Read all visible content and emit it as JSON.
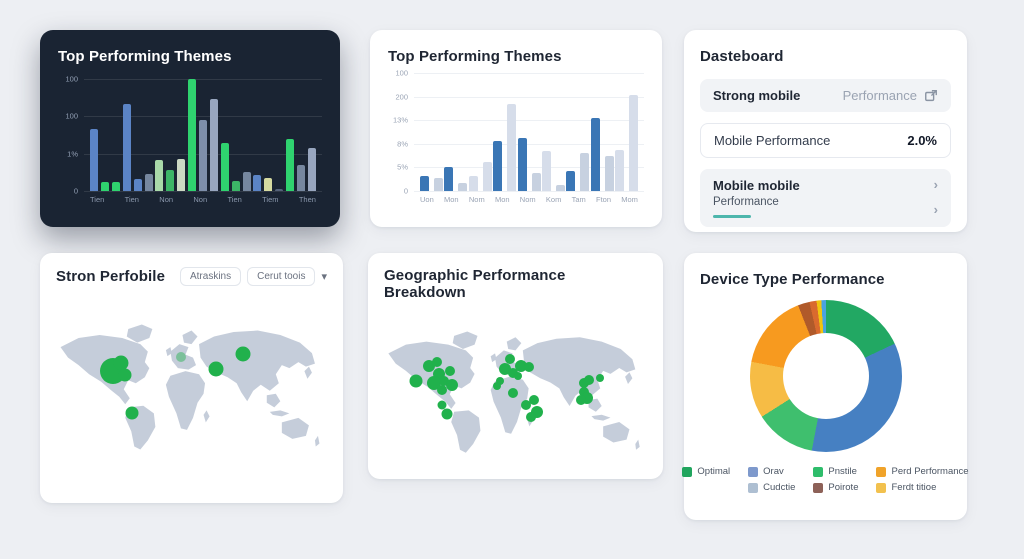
{
  "accent_colors": {
    "green_marker": "#21b14c",
    "teal_underline": "#4db6ac",
    "dark_card_bg": "#1a2433"
  },
  "cards": {
    "dark_chart": {
      "title": "Top Performing Themes"
    },
    "light_chart": {
      "title": "Top Performing Themes"
    },
    "dashboard": {
      "title": "Dasteboard",
      "row1": {
        "label": "Strong mobile",
        "value": "Performance",
        "icon": "external-link-icon"
      },
      "row2": {
        "label": "Mobile Performance",
        "value": "2.0%"
      },
      "row3": {
        "label": "Mobile mobile",
        "sublabel": "Performance",
        "icon": "chevron-right-icon"
      }
    },
    "map_small": {
      "title": "Stron Perfobile",
      "button1": "Atraskins",
      "button2": "Cerut toois"
    },
    "map_large": {
      "title": "Geographic Performance Breakdown"
    },
    "donut": {
      "title": "Device Type Performance"
    }
  },
  "chart_data": [
    {
      "id": "dark-theme-bars",
      "type": "bar",
      "title": "Top Performing Themes",
      "theme": "dark",
      "ylabel": "",
      "xlabel": "",
      "yticks": [
        "100",
        "100",
        "1%",
        "0"
      ],
      "grid": true,
      "categories": [
        "Tien",
        "Tien",
        "Non",
        "Non",
        "Tien",
        "Tiem",
        "Then"
      ],
      "groups": [
        {
          "bars": [
            {
              "v": 55,
              "c": "#5b84c6"
            },
            {
              "v": 8,
              "c": "#2fd36f"
            },
            {
              "v": 8,
              "c": "#2fd36f"
            }
          ]
        },
        {
          "bars": [
            {
              "v": 78,
              "c": "#5b84c6"
            },
            {
              "v": 11,
              "c": "#5b84c6"
            },
            {
              "v": 15,
              "c": "#76879f"
            }
          ]
        },
        {
          "bars": [
            {
              "v": 28,
              "c": "#a9d9a9"
            },
            {
              "v": 19,
              "c": "#3cb567"
            },
            {
              "v": 29,
              "c": "#ccd9c4"
            }
          ]
        },
        {
          "bars": [
            {
              "v": 100,
              "c": "#2fd36f"
            },
            {
              "v": 63,
              "c": "#7e8fab"
            },
            {
              "v": 82,
              "c": "#98a6bf"
            }
          ]
        },
        {
          "bars": [
            {
              "v": 43,
              "c": "#2fd36f"
            },
            {
              "v": 9,
              "c": "#3cb567"
            },
            {
              "v": 17,
              "c": "#76879f"
            }
          ]
        },
        {
          "bars": [
            {
              "v": 14,
              "c": "#5b84c6"
            },
            {
              "v": 12,
              "c": "#d6daa0"
            },
            {
              "v": 2,
              "c": "#55627a"
            }
          ]
        },
        {
          "bars": [
            {
              "v": 46,
              "c": "#2fd36f"
            },
            {
              "v": 23,
              "c": "#76879f"
            },
            {
              "v": 38,
              "c": "#98a6bf"
            }
          ]
        }
      ]
    },
    {
      "id": "light-theme-bars",
      "type": "bar",
      "title": "Top Performing Themes",
      "theme": "light",
      "ylabel": "",
      "xlabel": "",
      "yticks": [
        "100",
        "200",
        "13%",
        "8%",
        "5%",
        "0"
      ],
      "grid": true,
      "categories": [
        "Uon",
        "Mon",
        "Nom",
        "Mon",
        "Nom",
        "Kom",
        "Tam",
        "Fton",
        "Mom"
      ],
      "groups": [
        {
          "bars": [
            {
              "v": 13,
              "c": "#3a76b5"
            },
            {
              "v": 11,
              "c": "#c7d1e0"
            }
          ]
        },
        {
          "bars": [
            {
              "v": 20,
              "c": "#3a76b5"
            },
            {
              "v": 7,
              "c": "#c7d1e0"
            }
          ]
        },
        {
          "bars": [
            {
              "v": 13,
              "c": "#d6ddea"
            },
            {
              "v": 25,
              "c": "#d6ddea"
            }
          ]
        },
        {
          "bars": [
            {
              "v": 42,
              "c": "#3a76b5"
            },
            {
              "v": 74,
              "c": "#d6ddea"
            }
          ]
        },
        {
          "bars": [
            {
              "v": 45,
              "c": "#3a76b5"
            },
            {
              "v": 15,
              "c": "#c7d1e0"
            }
          ]
        },
        {
          "bars": [
            {
              "v": 34,
              "c": "#d6ddea"
            },
            {
              "v": 5,
              "c": "#c7d1e0"
            }
          ]
        },
        {
          "bars": [
            {
              "v": 17,
              "c": "#3a76b5"
            },
            {
              "v": 32,
              "c": "#c7d1e0"
            }
          ]
        },
        {
          "bars": [
            {
              "v": 62,
              "c": "#3a76b5"
            },
            {
              "v": 30,
              "c": "#c7d1e0"
            }
          ]
        },
        {
          "bars": [
            {
              "v": 35,
              "c": "#d6ddea"
            },
            {
              "v": 81,
              "c": "#d6ddea"
            }
          ]
        }
      ]
    },
    {
      "id": "device-type-donut",
      "type": "pie",
      "title": "Device Type Performance",
      "slices": [
        {
          "label": "Optimal",
          "value": 18,
          "color": "#22a863"
        },
        {
          "label": "Orav",
          "value": 35,
          "color": "#4680c2"
        },
        {
          "label": "Pnstile",
          "value": 13,
          "color": "#3fbf6e"
        },
        {
          "label": "Ferdt titioe",
          "value": 12,
          "color": "#f6bc45"
        },
        {
          "label": "Perd Performance",
          "value": 16,
          "color": "#f79a1f"
        },
        {
          "label": "Poirote",
          "value": 2.5,
          "color": "#b05a2a"
        },
        {
          "label": "sliver-red",
          "value": 1.5,
          "color": "#d96a2e"
        },
        {
          "label": "sliver-gold",
          "value": 1,
          "color": "#f1c40f"
        },
        {
          "label": "sliver-blue",
          "value": 1,
          "color": "#4aa3df"
        }
      ],
      "legend_position": "bottom"
    }
  ],
  "legend_columns": [
    {
      "items": [
        {
          "label": "Optimal",
          "color": "#21a55e"
        }
      ]
    },
    {
      "items": [
        {
          "label": "Orav",
          "color": "#7e99cc"
        },
        {
          "label": "Cudctie",
          "color": "#aebfd2"
        }
      ]
    },
    {
      "items": [
        {
          "label": "Pnstile",
          "color": "#2ebd6b"
        },
        {
          "label": "Poirote",
          "color": "#8d6158"
        }
      ]
    },
    {
      "items": [
        {
          "label": "Perd Performance",
          "color": "#f0a32a"
        },
        {
          "label": "Ferdt titioe",
          "color": "#f2c14e"
        }
      ]
    }
  ],
  "maps": {
    "small": {
      "markers": [
        {
          "x": 21,
          "y": 40,
          "r": 26,
          "o": 1
        },
        {
          "x": 24,
          "y": 36,
          "r": 15,
          "o": 1
        },
        {
          "x": 25.5,
          "y": 42,
          "r": 13,
          "o": 1
        },
        {
          "x": 28,
          "y": 62,
          "r": 13,
          "o": 1
        },
        {
          "x": 59,
          "y": 39,
          "r": 15,
          "o": 1
        },
        {
          "x": 69,
          "y": 31,
          "r": 15,
          "o": 1
        },
        {
          "x": 46,
          "y": 33,
          "r": 10,
          "o": 0.45
        }
      ]
    },
    "large": {
      "markers": [
        {
          "x": 12,
          "y": 42,
          "r": 13,
          "o": 1
        },
        {
          "x": 17,
          "y": 33,
          "r": 12,
          "o": 1
        },
        {
          "x": 20,
          "y": 31,
          "r": 10,
          "o": 1
        },
        {
          "x": 21,
          "y": 38,
          "r": 12,
          "o": 1
        },
        {
          "x": 19,
          "y": 43,
          "r": 14,
          "o": 1
        },
        {
          "x": 23,
          "y": 42,
          "r": 10,
          "o": 1
        },
        {
          "x": 25,
          "y": 36,
          "r": 10,
          "o": 1
        },
        {
          "x": 26,
          "y": 44,
          "r": 12,
          "o": 1
        },
        {
          "x": 22,
          "y": 47,
          "r": 10,
          "o": 1
        },
        {
          "x": 22,
          "y": 56,
          "r": 9,
          "o": 1
        },
        {
          "x": 24,
          "y": 61,
          "r": 11,
          "o": 1
        },
        {
          "x": 48,
          "y": 29,
          "r": 10,
          "o": 1
        },
        {
          "x": 46,
          "y": 35,
          "r": 12,
          "o": 1
        },
        {
          "x": 49,
          "y": 37,
          "r": 10,
          "o": 1
        },
        {
          "x": 52,
          "y": 33,
          "r": 12,
          "o": 1
        },
        {
          "x": 55,
          "y": 34,
          "r": 10,
          "o": 1
        },
        {
          "x": 51,
          "y": 39,
          "r": 8,
          "o": 1
        },
        {
          "x": 44,
          "y": 42,
          "r": 8,
          "o": 1
        },
        {
          "x": 43,
          "y": 45,
          "r": 8,
          "o": 1
        },
        {
          "x": 49,
          "y": 49,
          "r": 10,
          "o": 1
        },
        {
          "x": 54,
          "y": 56,
          "r": 10,
          "o": 1
        },
        {
          "x": 57,
          "y": 53,
          "r": 10,
          "o": 1
        },
        {
          "x": 58,
          "y": 60,
          "r": 12,
          "o": 1
        },
        {
          "x": 56,
          "y": 63,
          "r": 10,
          "o": 1
        },
        {
          "x": 76,
          "y": 43,
          "r": 10,
          "o": 1
        },
        {
          "x": 78,
          "y": 41,
          "r": 10,
          "o": 1
        },
        {
          "x": 76,
          "y": 48,
          "r": 10,
          "o": 1
        },
        {
          "x": 77,
          "y": 52,
          "r": 12,
          "o": 1
        },
        {
          "x": 75,
          "y": 53,
          "r": 10,
          "o": 1
        },
        {
          "x": 82,
          "y": 40,
          "r": 8,
          "o": 1
        }
      ]
    }
  }
}
